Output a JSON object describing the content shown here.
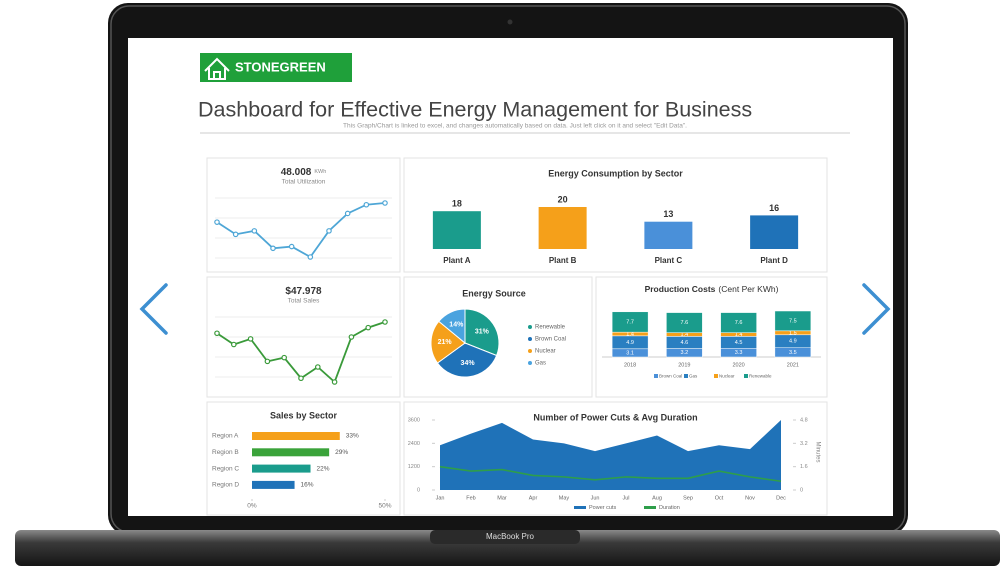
{
  "header": {
    "logo": "STONEGREEN",
    "title": "Dashboard for Effective Energy Management for Business",
    "subtitle": "This Graph/Chart is linked to excel, and changes automatically based on data. Just left click on it and select \"Edit Data\"."
  },
  "device": {
    "label": "MacBook Pro"
  },
  "chart_data": [
    {
      "type": "line",
      "title": "48.008",
      "unit": "KWh",
      "subtitle": "Total Utilization",
      "color": "#4ea6d6",
      "values": [
        45,
        38,
        40,
        30,
        31,
        25,
        40,
        50,
        55,
        56
      ]
    },
    {
      "type": "bar",
      "title": "Energy Consumption by Sector",
      "categories": [
        "Plant A",
        "Plant B",
        "Plant C",
        "Plant D"
      ],
      "values": [
        18,
        20,
        13,
        16
      ],
      "colors": [
        "#1a9c8c",
        "#f5a01a",
        "#4a90d9",
        "#1f72b8"
      ]
    },
    {
      "type": "line",
      "title": "$47.978",
      "subtitle": "Total Sales",
      "color": "#3a9a3a",
      "values": [
        42,
        36,
        39,
        27,
        29,
        18,
        24,
        16,
        40,
        45,
        48
      ]
    },
    {
      "type": "pie",
      "title": "Energy Source",
      "categories": [
        "Renewable",
        "Brown Coal",
        "Nuclear",
        "Gas"
      ],
      "values": [
        31,
        34,
        21,
        14
      ],
      "value_labels": [
        "31%",
        "34%",
        "21%",
        "14%"
      ],
      "colors": [
        "#1a9c8c",
        "#1f72b8",
        "#f5a01a",
        "#4aa3df"
      ]
    },
    {
      "type": "bar",
      "stacked": true,
      "title": "Production Costs",
      "subtitle": "(Cent Per KWh)",
      "categories": [
        "2018",
        "2019",
        "2020",
        "2021"
      ],
      "series": [
        {
          "name": "Brown Coal",
          "color": "#4a90d9",
          "values": [
            3.1,
            3.2,
            3.3,
            3.5
          ]
        },
        {
          "name": "Gas",
          "color": "#2a7fc1",
          "values": [
            4.9,
            4.6,
            4.5,
            4.9
          ]
        },
        {
          "name": "Nuclear",
          "color": "#f5a01a",
          "values": [
            1.4,
            1.4,
            1.4,
            1.5
          ]
        },
        {
          "name": "Renewable",
          "color": "#1a9c8c",
          "values": [
            7.7,
            7.6,
            7.6,
            7.5
          ]
        }
      ]
    },
    {
      "type": "bar",
      "orientation": "horizontal",
      "title": "Sales by Sector",
      "categories": [
        "Region A",
        "Region B",
        "Region C",
        "Region D"
      ],
      "values": [
        33,
        29,
        22,
        16
      ],
      "value_labels": [
        "33%",
        "29%",
        "22%",
        "16%"
      ],
      "colors": [
        "#f5a01a",
        "#3aa33a",
        "#1a9c8c",
        "#1f72b8"
      ],
      "xlim": [
        0,
        50
      ],
      "xticks": [
        {
          "value": 0,
          "label": "0%"
        },
        {
          "value": 50,
          "label": "50%"
        }
      ]
    },
    {
      "type": "area",
      "title": "Number of Power Cuts & Avg Duration",
      "y2label": "Minutes",
      "categories": [
        "Jan",
        "Feb",
        "Mar",
        "Apr",
        "May",
        "Jun",
        "Jul",
        "Aug",
        "Sep",
        "Oct",
        "Nov",
        "Dec"
      ],
      "ylim": [
        0,
        3600
      ],
      "yticks": [
        0,
        1200,
        2400,
        3600
      ],
      "y2lim": [
        0,
        4.8
      ],
      "y2ticks": [
        0,
        1.6,
        3.2,
        4.8
      ],
      "series": [
        {
          "name": "Power cuts",
          "color": "#1f72b8",
          "values": [
            2300,
            2900,
            3450,
            2600,
            2400,
            2000,
            2400,
            2800,
            2000,
            2300,
            2100,
            3600
          ]
        },
        {
          "name": "Duration",
          "type": "line",
          "axis": "y2",
          "color": "#2e9e4a",
          "values": [
            1.6,
            1.3,
            1.4,
            1.0,
            0.9,
            0.7,
            0.9,
            0.8,
            0.8,
            1.3,
            0.9,
            0.6
          ]
        }
      ]
    }
  ]
}
